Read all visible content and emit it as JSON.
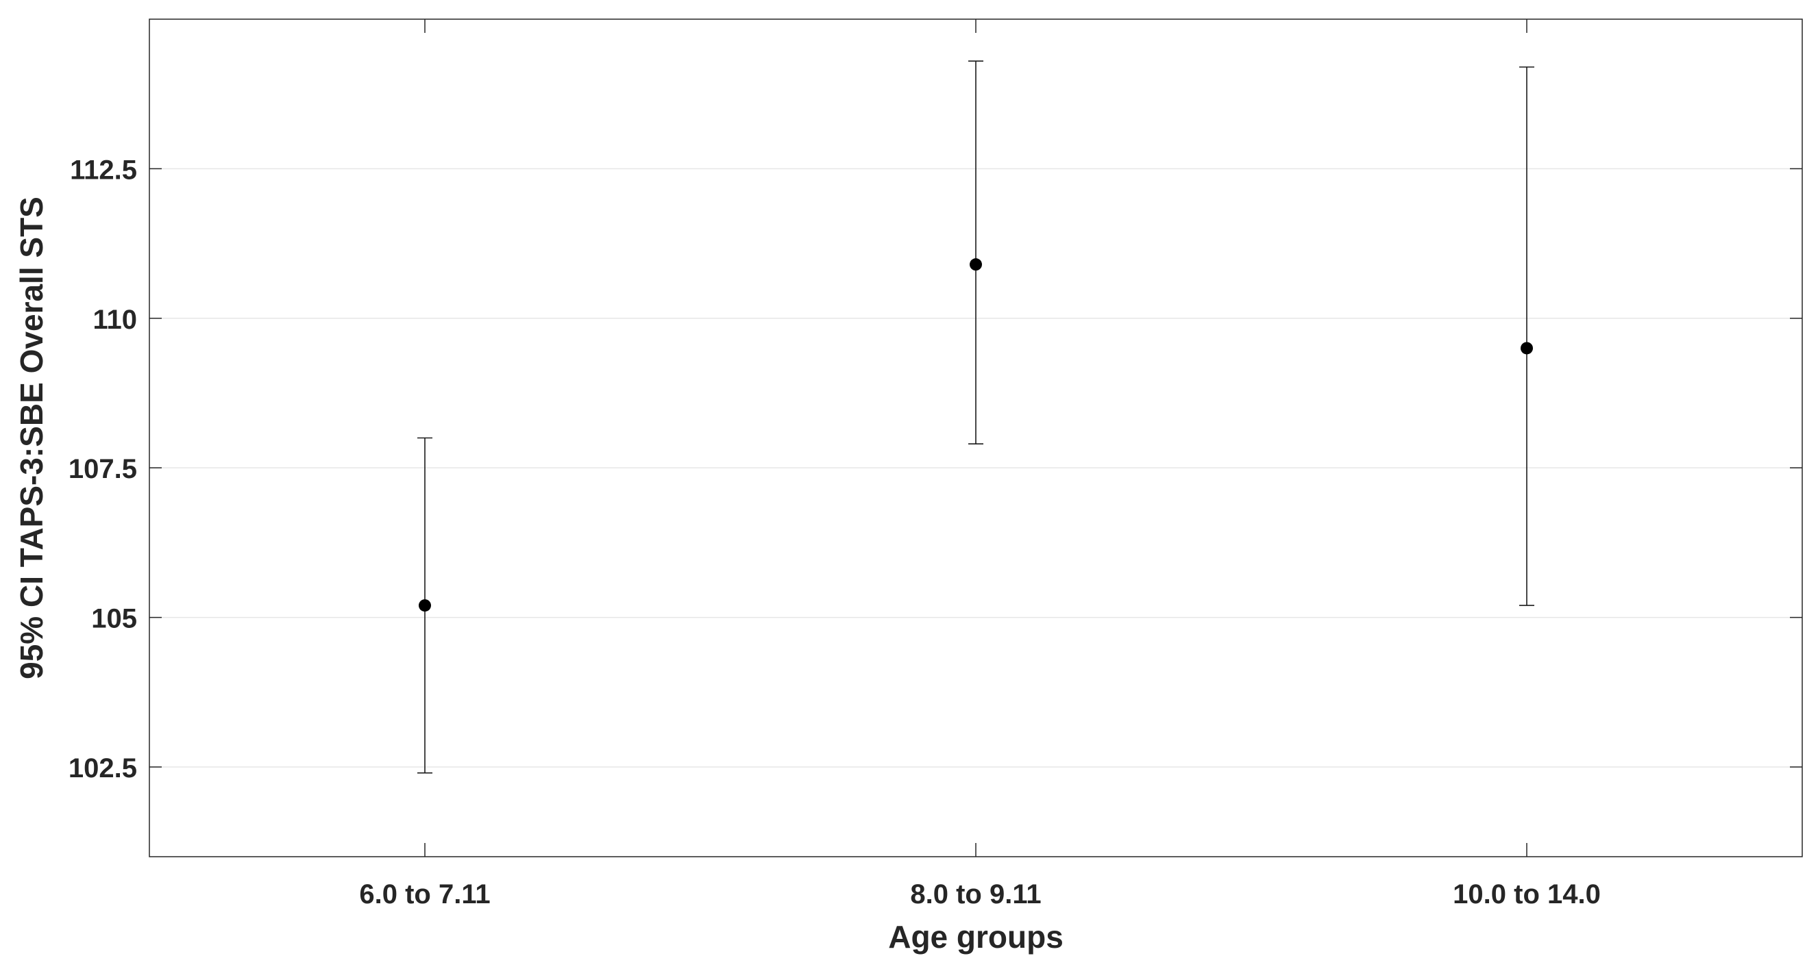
{
  "chart_data": {
    "type": "scatter",
    "title": "",
    "xlabel": "Age groups",
    "ylabel": "95% CI TAPS-3:SBE Overall STS",
    "categories": [
      "6.0 to 7.11",
      "8.0 to 9.11",
      "10.0 to 14.0"
    ],
    "series": [
      {
        "values": [
          105.2,
          110.9,
          109.5
        ],
        "ci_lower": [
          102.4,
          107.9,
          105.2
        ],
        "ci_upper": [
          108.0,
          114.3,
          114.2
        ],
        "color": "#000000"
      }
    ],
    "ylim": [
      101.0,
      115.0
    ],
    "yticks": [
      102.5,
      105,
      107.5,
      110,
      112.5
    ],
    "ytick_labels": [
      "102.5",
      "105",
      "107.5",
      "110",
      "112.5"
    ],
    "grid": "y-major",
    "legend": "none"
  }
}
